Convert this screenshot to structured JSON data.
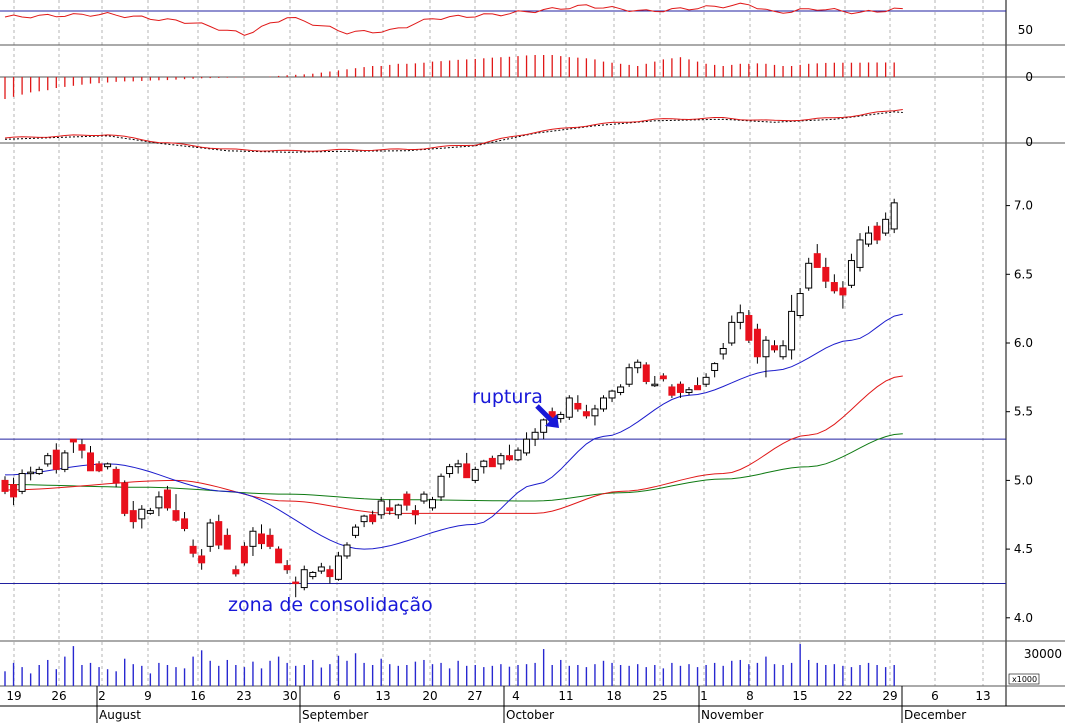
{
  "chart_data": {
    "type": "candlestick",
    "panels": {
      "indicator1": {
        "label": "50",
        "reference_value": 50
      },
      "indicator2": {
        "label": "0",
        "reference_value": 0
      },
      "indicator3": {
        "label": "0",
        "reference_value": 0
      },
      "price": {
        "ylim": [
          3.9,
          7.3
        ],
        "yticks": [
          "4.0",
          "4.5",
          "5.0",
          "5.5",
          "6.0",
          "6.5",
          "7.0"
        ]
      },
      "volume": {
        "ytick_label": "30000",
        "unit_label": "x1000"
      }
    },
    "horizontal_levels": {
      "resistance": 5.3,
      "support": 4.25
    },
    "annotations": {
      "breakout_label": "ruptura",
      "consolidation_label": "zona de consolidação"
    },
    "x_ticks": [
      "19",
      "26",
      "2",
      "9",
      "16",
      "23",
      "30",
      "6",
      "13",
      "20",
      "27",
      "4",
      "11",
      "18",
      "25",
      "1",
      "8",
      "15",
      "22",
      "29",
      "6",
      "13"
    ],
    "months": [
      "August",
      "September",
      "October",
      "November",
      "December"
    ],
    "colors": {
      "up": "#ffffff",
      "down": "#e8101c",
      "ma_fast": "#1c1ccc",
      "ma_mid": "#e01818",
      "ma_slow": "#0e7a12",
      "grid": "#b4b4b4",
      "hline": "#2020a0",
      "volume": "#2828d0"
    },
    "candles": [
      [
        5.0,
        5.03,
        4.9,
        4.92
      ],
      [
        4.97,
        5.02,
        4.82,
        4.88
      ],
      [
        4.92,
        5.08,
        4.9,
        5.05
      ],
      [
        5.05,
        5.1,
        5.0,
        5.06
      ],
      [
        5.05,
        5.1,
        5.04,
        5.08
      ],
      [
        5.12,
        5.2,
        5.1,
        5.18
      ],
      [
        5.22,
        5.27,
        5.05,
        5.08
      ],
      [
        5.08,
        5.22,
        5.06,
        5.2
      ],
      [
        5.3,
        5.3,
        5.2,
        5.28
      ],
      [
        5.26,
        5.3,
        5.16,
        5.22
      ],
      [
        5.2,
        5.25,
        5.07,
        5.07
      ],
      [
        5.12,
        5.14,
        5.06,
        5.07
      ],
      [
        5.1,
        5.13,
        5.08,
        5.12
      ],
      [
        5.08,
        5.1,
        4.95,
        4.98
      ],
      [
        4.98,
        5.0,
        4.74,
        4.76
      ],
      [
        4.78,
        4.85,
        4.65,
        4.7
      ],
      [
        4.72,
        4.82,
        4.65,
        4.79
      ],
      [
        4.76,
        4.8,
        4.75,
        4.78
      ],
      [
        4.8,
        4.92,
        4.74,
        4.88
      ],
      [
        4.93,
        4.96,
        4.78,
        4.8
      ],
      [
        4.78,
        4.9,
        4.7,
        4.71
      ],
      [
        4.72,
        4.77,
        4.63,
        4.65
      ],
      [
        4.52,
        4.57,
        4.44,
        4.47
      ],
      [
        4.45,
        4.5,
        4.35,
        4.4
      ],
      [
        4.52,
        4.72,
        4.48,
        4.69
      ],
      [
        4.7,
        4.75,
        4.5,
        4.53
      ],
      [
        4.6,
        4.65,
        4.5,
        4.5
      ],
      [
        4.35,
        4.38,
        4.3,
        4.32
      ],
      [
        4.52,
        4.55,
        4.38,
        4.4
      ],
      [
        4.52,
        4.66,
        4.45,
        4.63
      ],
      [
        4.61,
        4.68,
        4.5,
        4.54
      ],
      [
        4.6,
        4.65,
        4.5,
        4.52
      ],
      [
        4.5,
        4.52,
        4.4,
        4.4
      ],
      [
        4.38,
        4.42,
        4.32,
        4.35
      ],
      [
        4.26,
        4.3,
        4.15,
        4.25
      ],
      [
        4.22,
        4.38,
        4.2,
        4.35
      ],
      [
        4.3,
        4.34,
        4.28,
        4.33
      ],
      [
        4.34,
        4.4,
        4.32,
        4.37
      ],
      [
        4.35,
        4.38,
        4.25,
        4.3
      ],
      [
        4.28,
        4.48,
        4.27,
        4.45
      ],
      [
        4.45,
        4.55,
        4.43,
        4.53
      ],
      [
        4.6,
        4.68,
        4.58,
        4.66
      ],
      [
        4.7,
        4.75,
        4.66,
        4.74
      ],
      [
        4.75,
        4.78,
        4.68,
        4.7
      ],
      [
        4.75,
        4.88,
        4.72,
        4.85
      ],
      [
        4.8,
        4.86,
        4.75,
        4.78
      ],
      [
        4.75,
        4.83,
        4.72,
        4.82
      ],
      [
        4.9,
        4.92,
        4.78,
        4.82
      ],
      [
        4.78,
        4.82,
        4.68,
        4.75
      ],
      [
        4.85,
        4.92,
        4.83,
        4.9
      ],
      [
        4.8,
        4.88,
        4.78,
        4.86
      ],
      [
        4.88,
        5.05,
        4.85,
        5.03
      ],
      [
        5.05,
        5.12,
        5.02,
        5.1
      ],
      [
        5.1,
        5.15,
        5.05,
        5.12
      ],
      [
        5.12,
        5.2,
        5.02,
        5.02
      ],
      [
        5.0,
        5.1,
        4.98,
        5.08
      ],
      [
        5.1,
        5.15,
        5.05,
        5.14
      ],
      [
        5.16,
        5.18,
        5.1,
        5.1
      ],
      [
        5.12,
        5.2,
        5.08,
        5.18
      ],
      [
        5.18,
        5.26,
        5.14,
        5.15
      ],
      [
        5.15,
        5.24,
        5.14,
        5.22
      ],
      [
        5.2,
        5.35,
        5.18,
        5.3
      ],
      [
        5.3,
        5.38,
        5.25,
        5.35
      ],
      [
        5.35,
        5.45,
        5.3,
        5.44
      ],
      [
        5.5,
        5.53,
        5.42,
        5.46
      ],
      [
        5.45,
        5.5,
        5.42,
        5.48
      ],
      [
        5.46,
        5.62,
        5.44,
        5.6
      ],
      [
        5.56,
        5.62,
        5.5,
        5.52
      ],
      [
        5.5,
        5.55,
        5.45,
        5.47
      ],
      [
        5.47,
        5.55,
        5.4,
        5.52
      ],
      [
        5.52,
        5.62,
        5.5,
        5.6
      ],
      [
        5.6,
        5.66,
        5.57,
        5.65
      ],
      [
        5.64,
        5.7,
        5.62,
        5.68
      ],
      [
        5.7,
        5.85,
        5.68,
        5.82
      ],
      [
        5.82,
        5.88,
        5.78,
        5.86
      ],
      [
        5.84,
        5.86,
        5.7,
        5.72
      ],
      [
        5.7,
        5.76,
        5.68,
        5.7
      ],
      [
        5.76,
        5.78,
        5.72,
        5.74
      ],
      [
        5.68,
        5.7,
        5.6,
        5.62
      ],
      [
        5.7,
        5.72,
        5.6,
        5.64
      ],
      [
        5.64,
        5.68,
        5.62,
        5.66
      ],
      [
        5.69,
        5.75,
        5.66,
        5.66
      ],
      [
        5.7,
        5.78,
        5.68,
        5.75
      ],
      [
        5.8,
        5.86,
        5.75,
        5.85
      ],
      [
        5.92,
        6.0,
        5.88,
        5.96
      ],
      [
        6.0,
        6.2,
        5.98,
        6.15
      ],
      [
        6.15,
        6.28,
        6.1,
        6.22
      ],
      [
        6.2,
        6.24,
        6.0,
        6.02
      ],
      [
        6.1,
        6.14,
        5.85,
        5.9
      ],
      [
        5.9,
        6.05,
        5.75,
        6.02
      ],
      [
        5.98,
        6.02,
        5.93,
        5.95
      ],
      [
        5.9,
        6.02,
        5.88,
        5.98
      ],
      [
        5.95,
        6.35,
        5.88,
        6.23
      ],
      [
        6.2,
        6.4,
        6.18,
        6.36
      ],
      [
        6.4,
        6.62,
        6.38,
        6.58
      ],
      [
        6.65,
        6.72,
        6.55,
        6.55
      ],
      [
        6.55,
        6.62,
        6.4,
        6.45
      ],
      [
        6.44,
        6.5,
        6.36,
        6.38
      ],
      [
        6.4,
        6.45,
        6.25,
        6.35
      ],
      [
        6.42,
        6.65,
        6.4,
        6.6
      ],
      [
        6.55,
        6.8,
        6.52,
        6.75
      ],
      [
        6.72,
        6.85,
        6.7,
        6.8
      ],
      [
        6.85,
        6.88,
        6.72,
        6.75
      ],
      [
        6.8,
        6.95,
        6.78,
        6.9
      ],
      [
        6.83,
        7.05,
        6.8,
        7.02
      ]
    ],
    "ma_fast": [
      [
        0,
        5.04
      ],
      [
        12,
        5.12
      ],
      [
        26,
        4.92
      ],
      [
        42,
        4.5
      ],
      [
        55,
        4.68
      ],
      [
        62,
        4.97
      ],
      [
        70,
        5.32
      ],
      [
        80,
        5.62
      ],
      [
        90,
        5.8
      ],
      [
        99,
        6.02
      ],
      [
        105,
        6.21
      ]
    ],
    "ma_mid": [
      [
        0,
        4.93
      ],
      [
        20,
        5.0
      ],
      [
        33,
        4.85
      ],
      [
        45,
        4.76
      ],
      [
        62,
        4.76
      ],
      [
        72,
        4.92
      ],
      [
        84,
        5.05
      ],
      [
        94,
        5.33
      ],
      [
        105,
        5.76
      ]
    ],
    "ma_slow": [
      [
        0,
        4.97
      ],
      [
        16,
        4.95
      ],
      [
        33,
        4.9
      ],
      [
        45,
        4.86
      ],
      [
        62,
        4.85
      ],
      [
        72,
        4.91
      ],
      [
        84,
        5.01
      ],
      [
        94,
        5.1
      ],
      [
        105,
        5.34
      ]
    ],
    "indicator1_series": [
      [
        0,
        60
      ],
      [
        12,
        64
      ],
      [
        22,
        52
      ],
      [
        28,
        35
      ],
      [
        33,
        60
      ],
      [
        40,
        38
      ],
      [
        45,
        40
      ],
      [
        50,
        58
      ],
      [
        58,
        64
      ],
      [
        68,
        76
      ],
      [
        75,
        68
      ],
      [
        87,
        78
      ],
      [
        90,
        66
      ],
      [
        95,
        72
      ],
      [
        100,
        66
      ],
      [
        105,
        72
      ]
    ],
    "indicator2_series": [
      -1,
      -0.9,
      -0.8,
      -0.7,
      -0.65,
      -0.6,
      -0.5,
      -0.45,
      -0.4,
      -0.35,
      -0.3,
      -0.28,
      -0.25,
      -0.22,
      -0.2,
      -0.2,
      -0.18,
      -0.16,
      -0.15,
      -0.14,
      -0.12,
      -0.1,
      -0.08,
      -0.06,
      -0.05,
      -0.04,
      -0.03,
      -0.02,
      -0.01,
      0,
      0,
      0.02,
      0.05,
      0.08,
      0.1,
      0.12,
      0.15,
      0.2,
      0.25,
      0.3,
      0.35,
      0.4,
      0.45,
      0.5,
      0.5,
      0.55,
      0.6,
      0.6,
      0.62,
      0.65,
      0.7,
      0.72,
      0.75,
      0.78,
      0.8,
      0.82,
      0.85,
      0.88,
      0.9,
      0.92,
      0.95,
      0.98,
      1,
      1,
      1,
      0.95,
      0.9,
      0.88,
      0.85,
      0.8,
      0.7,
      0.65,
      0.6,
      0.55,
      0.5,
      0.6,
      0.7,
      0.8,
      0.85,
      0.9,
      0.8,
      0.7,
      0.6,
      0.55,
      0.5,
      0.55,
      0.6,
      0.6,
      0.62,
      0.6,
      0.55,
      0.5,
      0.5,
      0.55,
      0.6,
      0.62,
      0.64,
      0.65,
      0.65,
      0.65,
      0.65,
      0.66,
      0.66,
      0.66,
      0.66,
      0.66
    ],
    "indicator3_series": [
      [
        0,
        0.8
      ],
      [
        12,
        1.5
      ],
      [
        18,
        0
      ],
      [
        26,
        -1.5
      ],
      [
        33,
        -1.8
      ],
      [
        40,
        -1.6
      ],
      [
        47,
        -1.5
      ],
      [
        55,
        -0.5
      ],
      [
        62,
        2
      ],
      [
        69,
        3.5
      ],
      [
        76,
        4.5
      ],
      [
        84,
        4.8
      ],
      [
        90,
        4.2
      ],
      [
        97,
        4.8
      ],
      [
        105,
        6.5
      ]
    ],
    "volume_values": [
      0.35,
      0.55,
      0.45,
      0.3,
      0.5,
      0.62,
      0.4,
      0.7,
      0.95,
      0.5,
      0.55,
      0.45,
      0.4,
      0.35,
      0.65,
      0.52,
      0.48,
      0.3,
      0.55,
      0.5,
      0.45,
      0.42,
      0.7,
      0.85,
      0.6,
      0.48,
      0.62,
      0.5,
      0.45,
      0.58,
      0.42,
      0.6,
      0.7,
      0.55,
      0.48,
      0.5,
      0.62,
      0.44,
      0.52,
      0.72,
      0.6,
      0.78,
      0.55,
      0.5,
      0.65,
      0.52,
      0.48,
      0.5,
      0.58,
      0.62,
      0.52,
      0.55,
      0.42,
      0.6,
      0.48,
      0.5,
      0.45,
      0.48,
      0.52,
      0.46,
      0.5,
      0.52,
      0.55,
      0.88,
      0.5,
      0.62,
      0.48,
      0.5,
      0.45,
      0.52,
      0.6,
      0.55,
      0.5,
      0.48,
      0.52,
      0.45,
      0.5,
      0.42,
      0.55,
      0.48,
      0.52,
      0.45,
      0.5,
      0.55,
      0.48,
      0.6,
      0.62,
      0.52,
      0.55,
      0.7,
      0.52,
      0.5,
      0.55,
      1.0,
      0.62,
      0.55,
      0.5,
      0.52,
      0.48,
      0.45,
      0.5,
      0.55,
      0.5,
      0.45,
      0.5,
      0.5
    ]
  }
}
